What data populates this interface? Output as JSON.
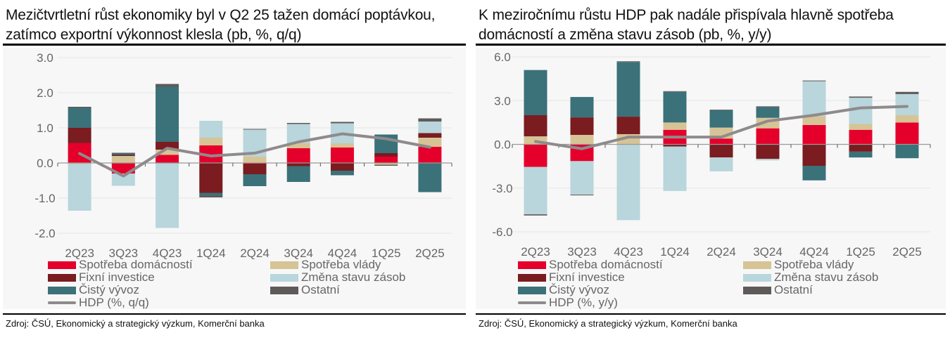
{
  "colors": {
    "Spotřeba domácností": "#e4002b",
    "Spotřeba vlády": "#d6c496",
    "Fixní investice": "#7a1c20",
    "Změna stavu zásob": "#b8d6dc",
    "Čistý vývoz": "#3b7179",
    "Ostatní": "#5f5a5a",
    "HDP": "#8f8a8c",
    "grid": "#e6e6e6",
    "axis": "#999999"
  },
  "chart_data": [
    {
      "type": "bar",
      "stacked": true,
      "title": "Mezičtvrtletní růst ekonomiky byl v Q2 25 tažen domácí poptávkou, zatímco exportní výkonnost klesla (pb, %, q/q)",
      "xlabel": "",
      "ylabel": "",
      "ylim": [
        -2.0,
        3.0
      ],
      "yticks": [
        3.0,
        2.0,
        1.0,
        0.0,
        -1.0,
        -2.0
      ],
      "ytick_labels": [
        "3.0",
        "2.0",
        "1.0",
        "0.0",
        "-1.0",
        "-2.0"
      ],
      "grid": true,
      "legend_position": "bottom",
      "categories": [
        "2Q23",
        "3Q23",
        "4Q23",
        "1Q24",
        "2Q24",
        "3Q24",
        "4Q24",
        "1Q25",
        "2Q25"
      ],
      "series": [
        {
          "name": "Spotřeba domácností",
          "values": [
            0.57,
            -0.3,
            0.23,
            0.5,
            -0.02,
            0.42,
            0.44,
            0.18,
            0.46
          ]
        },
        {
          "name": "Spotřeba vlády",
          "values": [
            -0.03,
            0.2,
            0.15,
            0.22,
            0.18,
            0.14,
            0.12,
            -0.05,
            0.26
          ]
        },
        {
          "name": "Fixní investice",
          "values": [
            0.43,
            0.03,
            0.22,
            -0.85,
            -0.3,
            -0.09,
            -0.22,
            0.1,
            0.13
          ]
        },
        {
          "name": "Změna stavu zásob",
          "values": [
            -1.33,
            -0.35,
            -1.85,
            0.48,
            0.77,
            0.55,
            0.57,
            0.0,
            0.33
          ]
        },
        {
          "name": "Čistý vývoz",
          "values": [
            0.57,
            0.04,
            1.57,
            -0.08,
            -0.34,
            -0.45,
            -0.13,
            0.53,
            -0.83
          ]
        },
        {
          "name": "Ostatní",
          "values": [
            0.03,
            0.02,
            0.08,
            -0.05,
            0.02,
            0.03,
            0.04,
            -0.03,
            0.09
          ]
        }
      ],
      "line": {
        "name": "HDP (%, q/q)",
        "values": [
          0.27,
          -0.37,
          0.42,
          0.2,
          0.28,
          0.6,
          0.83,
          0.69,
          0.45
        ]
      },
      "legend": [
        {
          "label": "Spotřeba domácností",
          "key": "Spotřeba domácností",
          "kind": "box"
        },
        {
          "label": "Spotřeba vlády",
          "key": "Spotřeba vlády",
          "kind": "box"
        },
        {
          "label": "Fixní investice",
          "key": "Fixní investice",
          "kind": "box"
        },
        {
          "label": "Změna stavu zásob",
          "key": "Změna stavu zásob",
          "kind": "box"
        },
        {
          "label": "Čistý vývoz",
          "key": "Čistý vývoz",
          "kind": "box"
        },
        {
          "label": "Ostatní",
          "key": "Ostatní",
          "kind": "box"
        },
        {
          "label": "HDP (%, q/q)",
          "key": "HDP",
          "kind": "line"
        }
      ],
      "source": "Zdroj: ČSÚ, Ekonomický a strategický výzkum, Komerční banka"
    },
    {
      "type": "bar",
      "stacked": true,
      "title": "K meziročnímu růstu HDP pak nadále přispívala hlavně spotřeba domácností a změna stavu zásob (pb, %, y/y)",
      "xlabel": "",
      "ylabel": "",
      "ylim": [
        -6.0,
        6.0
      ],
      "yticks": [
        6.0,
        3.0,
        0.0,
        -3.0,
        -6.0
      ],
      "ytick_labels": [
        "6.0",
        "3.0",
        "0.0",
        "-3.0",
        "-6.0"
      ],
      "grid": true,
      "legend_position": "bottom",
      "categories": [
        "2Q23",
        "3Q23",
        "4Q23",
        "1Q24",
        "2Q24",
        "3Q24",
        "4Q24",
        "1Q25",
        "2Q25"
      ],
      "series": [
        {
          "name": "Spotřeba domácností",
          "values": [
            -1.55,
            -1.15,
            0.0,
            1.0,
            0.4,
            1.1,
            1.33,
            1.0,
            1.5
          ]
        },
        {
          "name": "Spotřeba vlády",
          "values": [
            0.55,
            0.65,
            0.7,
            0.5,
            0.75,
            0.72,
            0.6,
            0.4,
            0.5
          ]
        },
        {
          "name": "Fixní investice",
          "values": [
            1.45,
            1.2,
            1.2,
            -0.15,
            -0.9,
            -1.0,
            -1.47,
            -0.5,
            0.0
          ]
        },
        {
          "name": "Změna stavu zásob",
          "values": [
            -3.25,
            -2.3,
            -5.2,
            -3.05,
            -0.95,
            -0.1,
            2.4,
            1.8,
            1.45
          ]
        },
        {
          "name": "Čistý vývoz",
          "values": [
            3.1,
            1.4,
            3.75,
            2.1,
            1.2,
            0.73,
            -1.0,
            -0.4,
            -0.95
          ]
        },
        {
          "name": "Ostatní",
          "values": [
            -0.08,
            -0.05,
            0.05,
            0.05,
            0.03,
            0.06,
            0.05,
            0.08,
            0.15
          ]
        }
      ],
      "line": {
        "name": "HDP (%, y/y)",
        "values": [
          0.2,
          -0.3,
          0.5,
          0.5,
          0.5,
          1.6,
          2.0,
          2.5,
          2.6
        ]
      },
      "legend": [
        {
          "label": "Spotřeba domácností",
          "key": "Spotřeba domácností",
          "kind": "box"
        },
        {
          "label": "Spotřeba vlády",
          "key": "Spotřeba vlády",
          "kind": "box"
        },
        {
          "label": "Fixní investice",
          "key": "Fixní investice",
          "kind": "box"
        },
        {
          "label": "Změna stavu zásob",
          "key": "Změna stavu zásob",
          "kind": "box"
        },
        {
          "label": "Čistý vývoz",
          "key": "Čistý vývoz",
          "kind": "box"
        },
        {
          "label": "Ostatní",
          "key": "Ostatní",
          "kind": "box"
        },
        {
          "label": "HDP (%, y/y)",
          "key": "HDP",
          "kind": "line"
        }
      ],
      "source": "Zdroj: ČSÚ, Ekonomický a strategický výzkum, Komerční banka"
    }
  ]
}
